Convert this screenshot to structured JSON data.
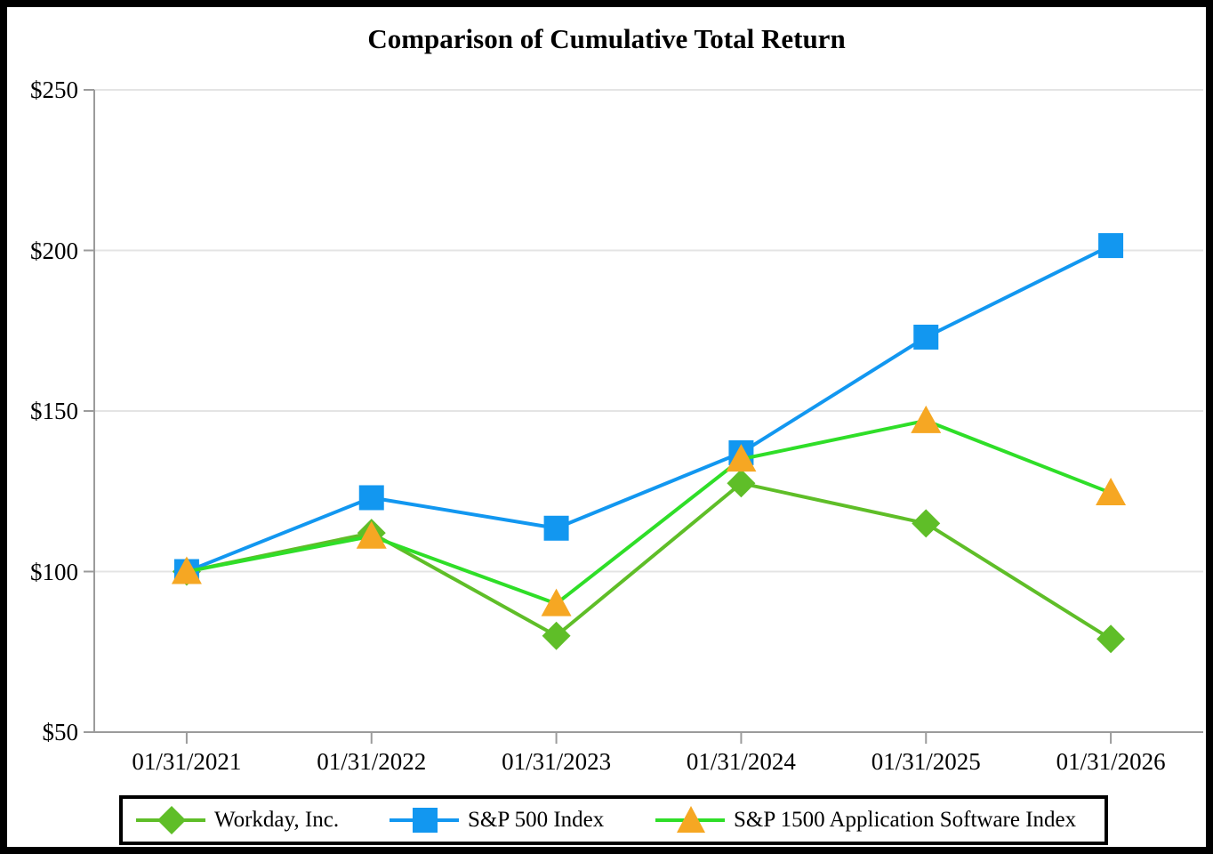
{
  "title": "Comparison of Cumulative Total Return",
  "chart_data": {
    "type": "line",
    "title": "Comparison of Cumulative Total Return",
    "categories": [
      "01/31/2021",
      "01/31/2022",
      "01/31/2023",
      "01/31/2024",
      "01/31/2025",
      "01/31/2026"
    ],
    "series": [
      {
        "name": "Workday, Inc.",
        "marker": "diamond",
        "line_color": "#5FBE28",
        "marker_color": "#5FBE28",
        "values": [
          100,
          112,
          80,
          127.5,
          115,
          79
        ]
      },
      {
        "name": "S&P 500 Index",
        "marker": "square",
        "line_color": "#1297F0",
        "marker_color": "#1297F0",
        "values": [
          100,
          123,
          113.5,
          137,
          173,
          201.5
        ]
      },
      {
        "name": "S&P 1500 Application Software Index",
        "marker": "triangle",
        "line_color": "#2FDE28",
        "marker_color": "#F6A723",
        "values": [
          100,
          111,
          90,
          135,
          147,
          124.5
        ]
      }
    ],
    "y_ticks": [
      {
        "value": 250,
        "label": "$250"
      },
      {
        "value": 200,
        "label": "$200"
      },
      {
        "value": 150,
        "label": "$150"
      },
      {
        "value": 100,
        "label": "$100"
      },
      {
        "value": 50,
        "label": "$50"
      }
    ],
    "ylim": [
      50,
      250
    ],
    "grid": true,
    "legend_position": "bottom",
    "style": {
      "axis_color": "#9B9B9B",
      "grid_color": "#E4E4E4",
      "border_color": "#000000",
      "background": "#FFFFFF"
    }
  }
}
